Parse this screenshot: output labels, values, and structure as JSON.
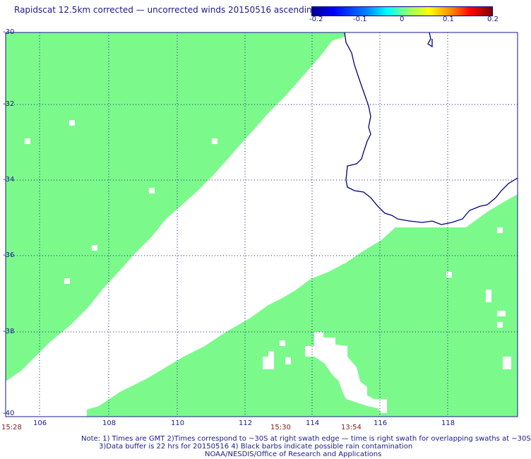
{
  "title": "Rapidscat 12.5km corrected — uncorrected winds 20150516 ascending",
  "colorbar": {
    "ticks": [
      "-0.2",
      "-0.1",
      "0",
      "0.1",
      "0.2"
    ],
    "colors": [
      "#00008f",
      "#0000ff",
      "#00ffff",
      "#80ff80",
      "#ffff00",
      "#ff0000",
      "#800000"
    ]
  },
  "map": {
    "lat_labels": [
      "-30",
      "-32",
      "-34",
      "-36",
      "-38",
      "-40"
    ],
    "lon_labels": [
      "106",
      "108",
      "110",
      "112",
      "114",
      "116",
      "118"
    ],
    "swath_color": "#7bfa8b",
    "coast_color": "#000080",
    "grid": true
  },
  "times": [
    "15:28",
    "15:30",
    "13:54"
  ],
  "notes": [
    "Note: 1) Times are GMT 2)Times correspond to ~30S at right swath edge — time is right swath for overlapping swaths at ~30S",
    "3)Data buffer is 22 hrs for 20150516 4) Black barbs indicate possible rain contamination",
    "NOAA/NESDIS/Office of Research and Applications"
  ]
}
